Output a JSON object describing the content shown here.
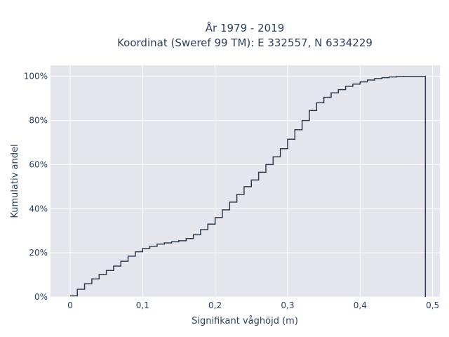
{
  "chart_data": {
    "type": "line",
    "line_shape": "step",
    "title_lines": [
      "År 1979 - 2019",
      "Koordinat (Sweref 99 TM): E 332557, N 6334229"
    ],
    "xlabel": "Signifikant våghöjd (m)",
    "ylabel": "Kumulativ andel",
    "xlim": [
      -0.027,
      0.51
    ],
    "ylim": [
      0,
      1.05
    ],
    "x_ticks": [
      {
        "value": 0,
        "label": "0"
      },
      {
        "value": 0.1,
        "label": "0,1"
      },
      {
        "value": 0.2,
        "label": "0,2"
      },
      {
        "value": 0.3,
        "label": "0,3"
      },
      {
        "value": 0.4,
        "label": "0,4"
      },
      {
        "value": 0.5,
        "label": "0,5"
      }
    ],
    "y_ticks": [
      {
        "value": 0,
        "label": "0%"
      },
      {
        "value": 0.2,
        "label": "20%"
      },
      {
        "value": 0.4,
        "label": "40%"
      },
      {
        "value": 0.6,
        "label": "60%"
      },
      {
        "value": 0.8,
        "label": "80%"
      },
      {
        "value": 1.0,
        "label": "100%"
      }
    ],
    "grid": true,
    "background": "#e5e5ee",
    "line_color": "#2f3b4c",
    "x": [
      0,
      0.01,
      0.02,
      0.03,
      0.04,
      0.05,
      0.06,
      0.07,
      0.08,
      0.09,
      0.1,
      0.11,
      0.12,
      0.13,
      0.14,
      0.15,
      0.16,
      0.17,
      0.18,
      0.19,
      0.2,
      0.21,
      0.22,
      0.23,
      0.24,
      0.25,
      0.26,
      0.27,
      0.28,
      0.29,
      0.3,
      0.31,
      0.32,
      0.33,
      0.34,
      0.35,
      0.36,
      0.37,
      0.38,
      0.39,
      0.4,
      0.41,
      0.42,
      0.43,
      0.44,
      0.45,
      0.46,
      0.47,
      0.48,
      0.49
    ],
    "y": [
      0.005,
      0.035,
      0.06,
      0.082,
      0.102,
      0.12,
      0.14,
      0.162,
      0.185,
      0.205,
      0.22,
      0.23,
      0.24,
      0.245,
      0.25,
      0.255,
      0.265,
      0.282,
      0.305,
      0.33,
      0.36,
      0.395,
      0.43,
      0.465,
      0.5,
      0.53,
      0.565,
      0.6,
      0.635,
      0.672,
      0.715,
      0.758,
      0.8,
      0.845,
      0.88,
      0.905,
      0.925,
      0.94,
      0.955,
      0.965,
      0.975,
      0.983,
      0.99,
      0.994,
      0.997,
      0.999,
      1.0,
      1.0,
      1.0,
      1.0
    ]
  }
}
